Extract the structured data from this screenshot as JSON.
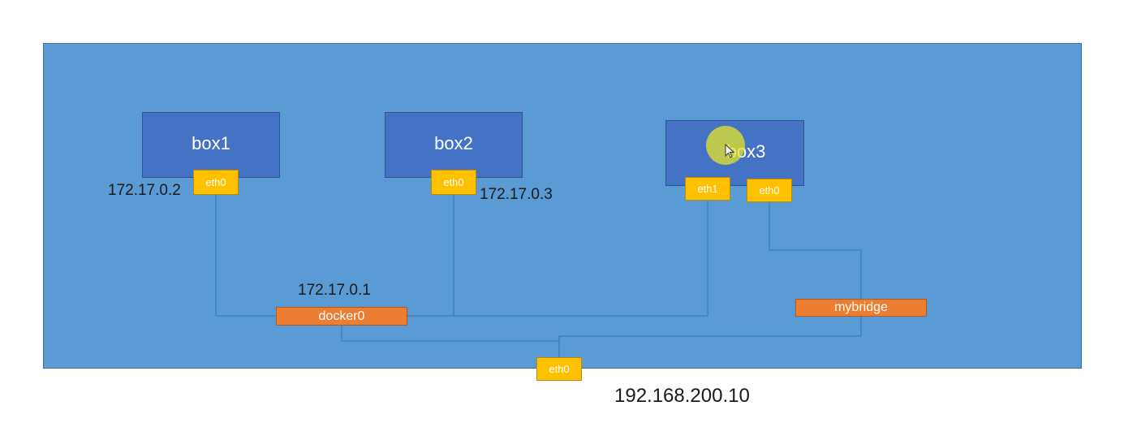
{
  "boxes": {
    "box1": {
      "label": "box1",
      "iface": "eth0",
      "ip": "172.17.0.2"
    },
    "box2": {
      "label": "box2",
      "iface": "eth0",
      "ip": "172.17.0.3"
    },
    "box3": {
      "label": "box3",
      "iface_a": "eth1",
      "iface_b": "eth0"
    }
  },
  "bridges": {
    "docker0": {
      "label": "docker0",
      "ip": "172.17.0.1"
    },
    "mybridge": {
      "label": "mybridge"
    }
  },
  "host": {
    "iface": "eth0",
    "ip": "192.168.200.10"
  },
  "colors": {
    "host_bg": "#5b9bd5",
    "container": "#4472c4",
    "interface": "#ffc000",
    "bridge": "#ed7d31",
    "wire": "#2e75b6"
  }
}
